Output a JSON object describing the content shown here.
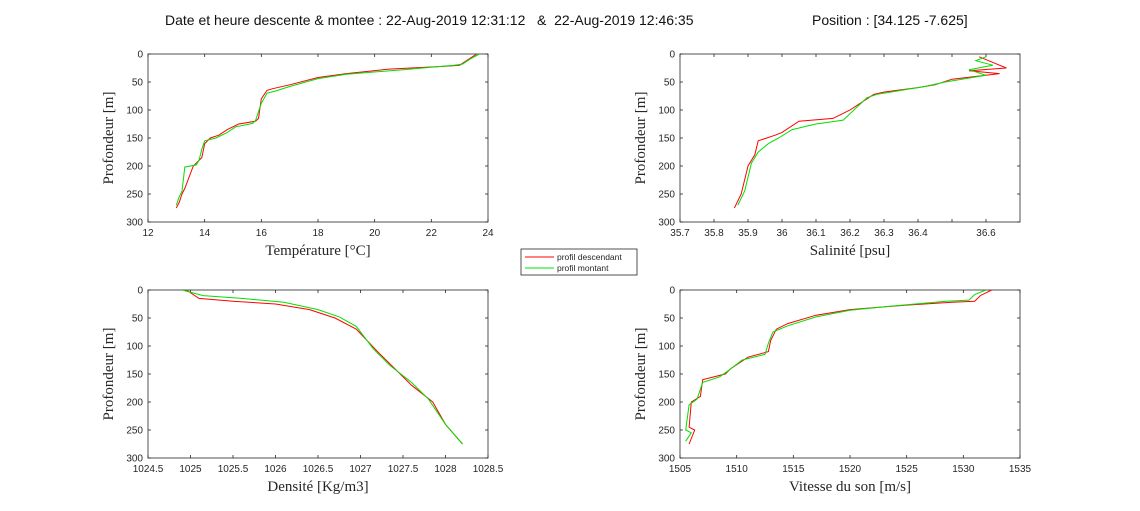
{
  "header": {
    "title": "Date et heure descente & montee : 22-Aug-2019 12:31:12   &  22-Aug-2019 12:46:35",
    "position": "Position : [34.125 -7.625]"
  },
  "legend": {
    "entries": [
      {
        "label": "profil descendant",
        "color": "#ff0000"
      },
      {
        "label": "profil montant",
        "color": "#00e000"
      }
    ]
  },
  "colors": {
    "descendant": "#ff0000",
    "montant": "#00e000",
    "axis": "#262626"
  },
  "chart_data": [
    {
      "type": "line",
      "xlabel": "Température [°C]",
      "ylabel": "Profondeur [m]",
      "xlim": [
        12,
        24
      ],
      "ylim": [
        0,
        300
      ],
      "y_reversed": true,
      "xticks": [
        12,
        14,
        16,
        18,
        20,
        22,
        24
      ],
      "yticks": [
        0,
        50,
        100,
        150,
        200,
        250,
        300
      ],
      "series": [
        {
          "name": "profil descendant",
          "x": [
            23.6,
            23.3,
            23.0,
            22.5,
            20.5,
            19.0,
            18.0,
            17.0,
            16.4,
            16.2,
            16.0,
            15.9,
            15.8,
            15.2,
            14.8,
            14.5,
            14.2,
            14.0,
            13.9,
            13.7,
            13.6,
            13.3,
            13.2,
            13.1,
            13.0
          ],
          "y": [
            0,
            10,
            20,
            22,
            27,
            35,
            42,
            55,
            62,
            65,
            80,
            115,
            120,
            125,
            135,
            145,
            150,
            160,
            185,
            195,
            200,
            240,
            250,
            265,
            275
          ]
        },
        {
          "name": "profil montant",
          "x": [
            23.7,
            23.4,
            23.1,
            22.8,
            21.0,
            19.0,
            18.0,
            17.0,
            16.5,
            16.2,
            16.0,
            15.8,
            15.7,
            15.1,
            14.8,
            14.4,
            14.0,
            13.9,
            13.8,
            13.7,
            13.3,
            13.2,
            13.1,
            13.0
          ],
          "y": [
            0,
            8,
            18,
            20,
            28,
            36,
            44,
            58,
            66,
            70,
            88,
            118,
            124,
            130,
            140,
            150,
            155,
            170,
            190,
            198,
            202,
            245,
            255,
            270
          ]
        }
      ]
    },
    {
      "type": "line",
      "xlabel": "Salinité [psu]",
      "ylabel": "Profondeur [m]",
      "xlim": [
        35.7,
        36.7
      ],
      "ylim": [
        0,
        300
      ],
      "y_reversed": true,
      "xticks": [
        35.7,
        35.8,
        35.9,
        36,
        36.1,
        36.2,
        36.3,
        36.4,
        36.5,
        36.6
      ],
      "xticklabels": [
        "35.7",
        "35.8",
        "35.9",
        "36",
        "36.1",
        "36.2",
        "36.3",
        "36.4",
        "",
        "36.6"
      ],
      "yticks": [
        0,
        50,
        100,
        150,
        200,
        250,
        300
      ],
      "series": [
        {
          "name": "profil descendant",
          "x": [
            36.58,
            36.62,
            36.66,
            36.55,
            36.64,
            36.5,
            36.45,
            36.4,
            36.3,
            36.27,
            36.25,
            36.2,
            36.15,
            36.05,
            36.0,
            35.98,
            35.93,
            35.92,
            35.9,
            35.88,
            35.86
          ],
          "y": [
            5,
            15,
            25,
            30,
            35,
            45,
            55,
            60,
            68,
            72,
            80,
            100,
            115,
            120,
            140,
            145,
            155,
            180,
            200,
            250,
            275
          ]
        },
        {
          "name": "profil montant",
          "x": [
            36.6,
            36.57,
            36.62,
            36.55,
            36.6,
            36.48,
            36.42,
            36.35,
            36.28,
            36.25,
            36.22,
            36.18,
            36.1,
            36.03,
            35.99,
            35.96,
            35.93,
            35.91,
            35.89,
            35.87
          ],
          "y": [
            5,
            12,
            20,
            28,
            38,
            50,
            58,
            65,
            72,
            78,
            95,
            118,
            125,
            135,
            150,
            160,
            175,
            195,
            245,
            270
          ]
        }
      ]
    },
    {
      "type": "line",
      "xlabel": "Densité [Kg/m3]",
      "ylabel": "Profondeur [m]",
      "xlim": [
        1024.5,
        1028.5
      ],
      "ylim": [
        0,
        300
      ],
      "y_reversed": true,
      "xticks": [
        1024.5,
        1025,
        1025.5,
        1026,
        1026.5,
        1027,
        1027.5,
        1028,
        1028.5
      ],
      "yticks": [
        0,
        50,
        100,
        150,
        200,
        250,
        300
      ],
      "series": [
        {
          "name": "profil descendant",
          "x": [
            1024.95,
            1025.1,
            1025.5,
            1026.0,
            1026.4,
            1026.7,
            1026.95,
            1027.2,
            1027.4,
            1027.6,
            1027.85,
            1028.0,
            1028.2
          ],
          "y": [
            0,
            15,
            20,
            25,
            35,
            50,
            70,
            110,
            140,
            170,
            200,
            240,
            275
          ]
        },
        {
          "name": "profil montant",
          "x": [
            1024.9,
            1025.15,
            1025.6,
            1026.1,
            1026.5,
            1026.75,
            1026.95,
            1027.15,
            1027.35,
            1027.6,
            1027.8,
            1028.0,
            1028.2
          ],
          "y": [
            0,
            10,
            15,
            22,
            35,
            48,
            65,
            105,
            135,
            165,
            195,
            240,
            275
          ]
        }
      ]
    },
    {
      "type": "line",
      "xlabel": "Vitesse du son [m/s]",
      "ylabel": "Profondeur [m]",
      "xlim": [
        1505,
        1535
      ],
      "ylim": [
        0,
        300
      ],
      "y_reversed": true,
      "xticks": [
        1505,
        1510,
        1515,
        1520,
        1525,
        1530,
        1535
      ],
      "yticks": [
        0,
        50,
        100,
        150,
        200,
        250,
        300
      ],
      "series": [
        {
          "name": "profil descendant",
          "x": [
            1532.5,
            1531.5,
            1531.0,
            1529.0,
            1525.0,
            1520.0,
            1517.0,
            1514.5,
            1513.5,
            1513.0,
            1512.8,
            1511.0,
            1509.5,
            1509.0,
            1507.0,
            1506.8,
            1506.0,
            1505.8,
            1506.3,
            1505.8
          ],
          "y": [
            0,
            10,
            20,
            22,
            27,
            35,
            45,
            60,
            70,
            90,
            110,
            120,
            140,
            150,
            160,
            190,
            200,
            245,
            250,
            275
          ]
        },
        {
          "name": "profil montant",
          "x": [
            1532.0,
            1531.0,
            1530.5,
            1528.5,
            1524.0,
            1520.0,
            1517.0,
            1514.5,
            1513.2,
            1512.8,
            1512.5,
            1510.5,
            1509.2,
            1508.5,
            1507.0,
            1506.5,
            1505.8,
            1505.5,
            1506.0,
            1505.5
          ],
          "y": [
            0,
            8,
            18,
            20,
            28,
            36,
            48,
            64,
            75,
            95,
            115,
            125,
            145,
            155,
            165,
            195,
            205,
            250,
            255,
            270
          ]
        }
      ]
    }
  ]
}
